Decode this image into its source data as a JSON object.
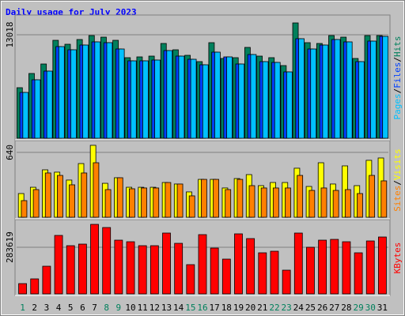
{
  "chart_data": {
    "type": "bar",
    "title": "Daily usage for July 2023",
    "categories": [
      "1",
      "2",
      "3",
      "4",
      "5",
      "6",
      "7",
      "8",
      "9",
      "10",
      "11",
      "12",
      "13",
      "14",
      "15",
      "16",
      "17",
      "18",
      "19",
      "20",
      "21",
      "22",
      "23",
      "24",
      "25",
      "26",
      "27",
      "28",
      "29",
      "30",
      "31"
    ],
    "category_colors": [
      "#00805c",
      "#000000",
      "#000000",
      "#000000",
      "#000000",
      "#000000",
      "#000000",
      "#00805c",
      "#00805c",
      "#000000",
      "#000000",
      "#000000",
      "#000000",
      "#000000",
      "#00805c",
      "#00805c",
      "#000000",
      "#000000",
      "#000000",
      "#000000",
      "#000000",
      "#00805c",
      "#00805c",
      "#000000",
      "#000000",
      "#000000",
      "#000000",
      "#000000",
      "#00805c",
      "#00805c",
      "#000000"
    ],
    "label_separator": "/",
    "panels": [
      {
        "ylim": [
          0,
          15204
        ],
        "yticks": [
          13018
        ],
        "series": [
          {
            "name": "Hits",
            "color": "#00805c",
            "values": [
              6360,
              8148,
              9341,
              12322,
              11825,
              12421,
              12918,
              12719,
              12322,
              10136,
              10235,
              10334,
              11924,
              11129,
              10434,
              9639,
              12024,
              10036,
              10136,
              11428,
              10334,
              10136,
              9142,
              14508,
              12024,
              11924,
              12918,
              12719,
              10036,
              12918,
              12918
            ]
          },
          {
            "name": "Files",
            "color": "#0040ff",
            "values": [
              5763,
              7353,
              8446,
              11527,
              11129,
              11726,
              12123,
              12024,
              11229,
              9738,
              9738,
              9838,
              11030,
              10334,
              9937,
              9241,
              10831,
              10235,
              9341,
              10533,
              9639,
              9540,
              8347,
              12521,
              11229,
              11726,
              12421,
              12123,
              9639,
              12222,
              12819
            ]
          },
          {
            "name": "Pages",
            "color": "#00c0ff",
            "values": [
              5763,
              7353,
              8446,
              11527,
              11129,
              11726,
              12123,
              12024,
              11229,
              9738,
              9738,
              9838,
              11030,
              10334,
              9937,
              9241,
              10831,
              10235,
              9341,
              10533,
              9639,
              9540,
              8347,
              12521,
              11229,
              11726,
              12421,
              12123,
              9639,
              12222,
              12819
            ]
          }
        ]
      },
      {
        "ylim": [
          0,
          733
        ],
        "yticks": [
          640
        ],
        "series": [
          {
            "name": "Visits",
            "color": "#ffff00",
            "values": [
              234,
              296,
              468,
              445,
              367,
              530,
              710,
              335,
              390,
              296,
              296,
              296,
              343,
              328,
              250,
              374,
              374,
              289,
              382,
              421,
              312,
              343,
              343,
              484,
              304,
              538,
              328,
              507,
              312,
              562,
              585
            ]
          },
          {
            "name": "Sites",
            "color": "#ff8000",
            "values": [
              164,
              273,
              437,
              413,
              320,
              437,
              538,
              273,
              390,
              281,
              289,
              289,
              343,
              328,
              211,
              374,
              374,
              273,
              374,
              312,
              289,
              289,
              289,
              413,
              265,
              289,
              265,
              273,
              234,
              413,
              359
            ]
          }
        ]
      },
      {
        "ylim": [
          0,
          437437
        ],
        "yticks": [
          283619
        ],
        "series": [
          {
            "name": "KBytes",
            "color": "#ff0000",
            "values": [
              62491,
              91333,
              168245,
              355718,
              293227,
              302841,
              423016,
              403788,
              326876,
              317262,
              293227,
              293227,
              370139,
              307648,
              177859,
              360525,
              278806,
              211508,
              365332,
              336490,
              249964,
              259578,
              144210,
              370139,
              283613,
              326876,
              331683,
              317262,
              249964,
              322069,
              346104
            ]
          }
        ]
      }
    ]
  }
}
